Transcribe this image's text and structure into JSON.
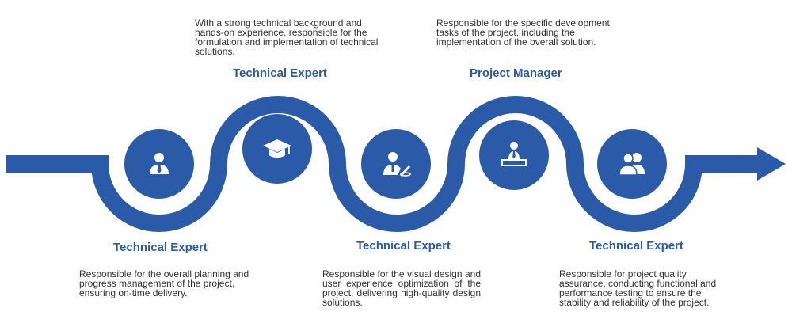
{
  "colors": {
    "primary": "#2b5ba8",
    "text": "#333333"
  },
  "steps": [
    {
      "title": "Technical Expert",
      "description": "Responsible for the overall planning and progress management of the project, ensuring on-time delivery.",
      "icon": "user-tie-icon"
    },
    {
      "title": "Technical Expert",
      "description": "With a strong technical background and hands-on experience, responsible for the formulation and implementation of technical solutions.",
      "icon": "graduation-cap-icon"
    },
    {
      "title": "Technical Expert",
      "description": "Responsible for the visual design and user experience optimization of the project, delivering high-quality design solutions.",
      "icon": "designer-icon"
    },
    {
      "title": "Project Manager",
      "description": "Responsible for the specific development tasks of the project, including the implementation of the overall solution.",
      "icon": "presenter-icon"
    },
    {
      "title": "Technical Expert",
      "description": "Responsible for project quality assurance, conducting functional and performance testing to ensure the stability and reliability of the project.",
      "icon": "team-icon"
    }
  ]
}
